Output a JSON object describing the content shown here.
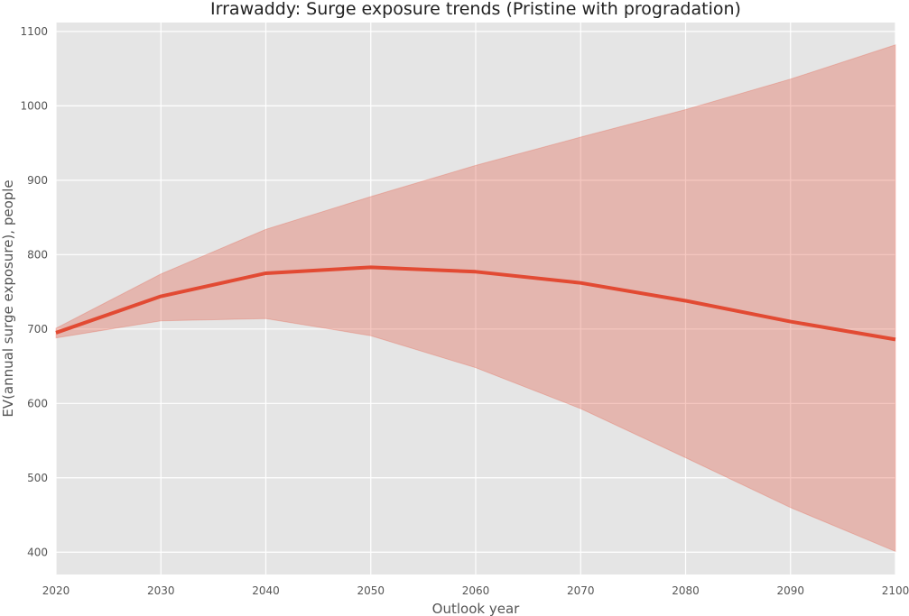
{
  "chart_data": {
    "type": "line",
    "title": "Irrawaddy: Surge exposure trends (Pristine with progradation)",
    "xlabel": "Outlook year",
    "ylabel": "EV(annual surge exposure), people",
    "x": [
      2020,
      2030,
      2040,
      2050,
      2060,
      2070,
      2080,
      2090,
      2100
    ],
    "series": [
      {
        "values": [
          695,
          744,
          775,
          783,
          777,
          762,
          738,
          710,
          686
        ],
        "lower": [
          688,
          711,
          714,
          691,
          648,
          593,
          527,
          460,
          401
        ],
        "upper": [
          701,
          774,
          834,
          878,
          920,
          958,
          995,
          1036,
          1082
        ]
      }
    ],
    "xlim": [
      2020,
      2100
    ],
    "ylim": [
      370,
      1112
    ],
    "xticks": [
      2020,
      2030,
      2040,
      2050,
      2060,
      2070,
      2080,
      2090,
      2100
    ],
    "yticks": [
      400,
      500,
      600,
      700,
      800,
      900,
      1000,
      1100
    ],
    "grid": true,
    "legend": "none",
    "colors": {
      "line": "#e24a33",
      "band": "#e24a33",
      "background": "#e5e5e5"
    }
  }
}
